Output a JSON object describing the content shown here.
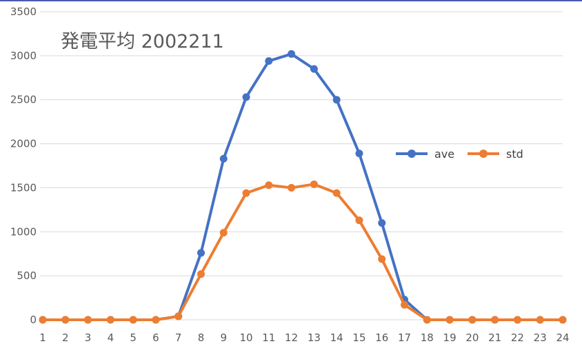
{
  "chart_data": {
    "type": "line",
    "title": "発電平均 2002211",
    "xlabel": "",
    "ylabel": "",
    "categories": [
      "1",
      "2",
      "3",
      "4",
      "5",
      "6",
      "7",
      "8",
      "9",
      "10",
      "11",
      "12",
      "13",
      "14",
      "15",
      "16",
      "17",
      "18",
      "19",
      "20",
      "21",
      "22",
      "23",
      "24"
    ],
    "series": [
      {
        "name": "ave",
        "color": "#4472c4",
        "values": [
          0,
          0,
          0,
          0,
          0,
          0,
          40,
          760,
          1830,
          2530,
          2940,
          3020,
          2850,
          2500,
          1890,
          1100,
          230,
          0,
          0,
          0,
          0,
          0,
          0,
          0
        ]
      },
      {
        "name": "std",
        "color": "#ed7d31",
        "values": [
          0,
          0,
          0,
          0,
          0,
          0,
          40,
          520,
          990,
          1440,
          1530,
          1500,
          1540,
          1440,
          1130,
          690,
          170,
          0,
          0,
          0,
          0,
          0,
          0,
          0
        ]
      }
    ],
    "ylim": [
      0,
      3500
    ],
    "yticks": [
      "0",
      "500",
      "1000",
      "1500",
      "2000",
      "2500",
      "3000",
      "3500"
    ],
    "grid": true,
    "legend_position": "right"
  }
}
